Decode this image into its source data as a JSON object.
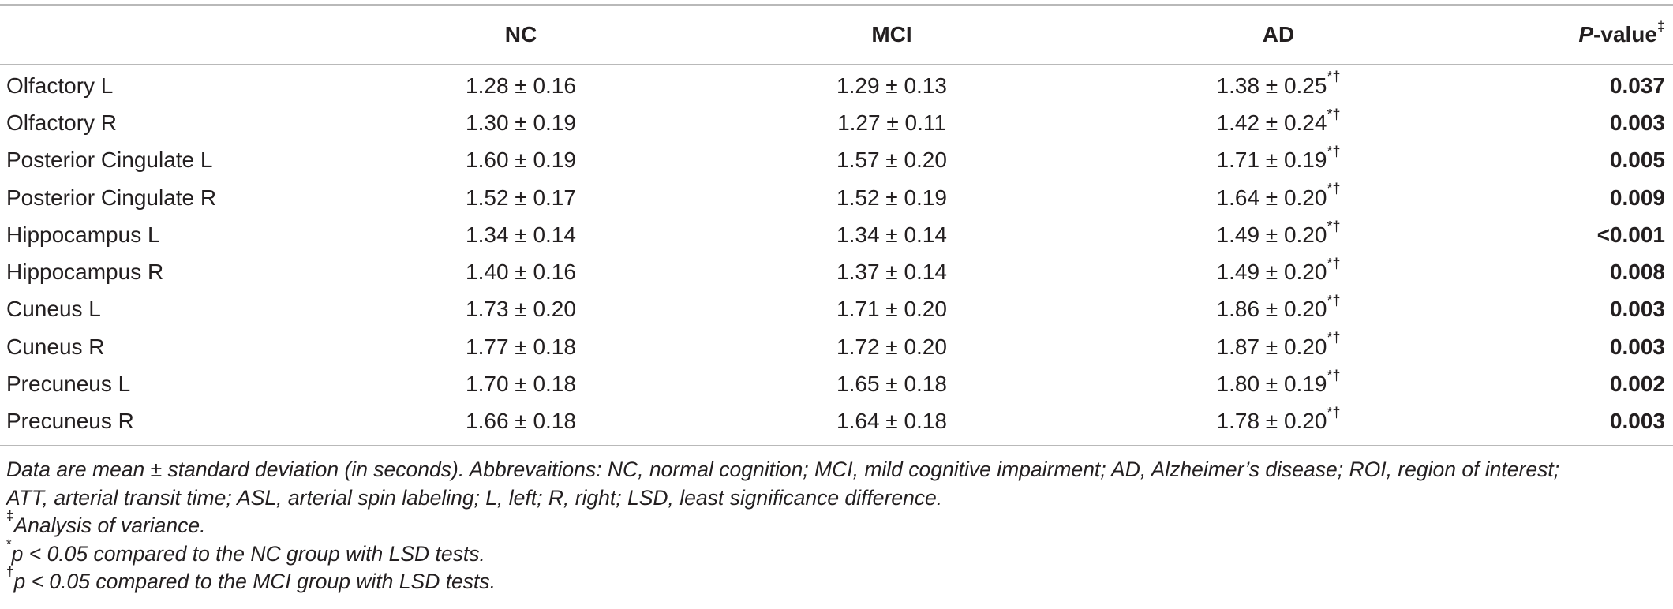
{
  "table": {
    "headers": {
      "nc": "NC",
      "mci": "MCI",
      "ad": "AD",
      "p_value_italic": "P",
      "p_value_rest": "-value",
      "p_value_mark": "‡"
    },
    "rows": [
      {
        "region": "Olfactory L",
        "nc": "1.28 ± 0.16",
        "mci": "1.29 ± 0.13",
        "ad": "1.38 ± 0.25",
        "ad_marks": "*†",
        "p": "0.037"
      },
      {
        "region": "Olfactory R",
        "nc": "1.30 ± 0.19",
        "mci": "1.27 ± 0.11",
        "ad": "1.42 ± 0.24",
        "ad_marks": "*†",
        "p": "0.003"
      },
      {
        "region": "Posterior Cingulate L",
        "nc": "1.60 ± 0.19",
        "mci": "1.57 ± 0.20",
        "ad": "1.71 ± 0.19",
        "ad_marks": "*†",
        "p": "0.005"
      },
      {
        "region": "Posterior Cingulate R",
        "nc": "1.52 ± 0.17",
        "mci": "1.52 ± 0.19",
        "ad": "1.64 ± 0.20",
        "ad_marks": "*†",
        "p": "0.009"
      },
      {
        "region": "Hippocampus L",
        "nc": "1.34 ± 0.14",
        "mci": "1.34 ± 0.14",
        "ad": "1.49 ± 0.20",
        "ad_marks": "*†",
        "p": "<0.001"
      },
      {
        "region": "Hippocampus R",
        "nc": "1.40 ± 0.16",
        "mci": "1.37 ± 0.14",
        "ad": "1.49 ± 0.20",
        "ad_marks": "*†",
        "p": "0.008"
      },
      {
        "region": "Cuneus L",
        "nc": "1.73 ± 0.20",
        "mci": "1.71 ± 0.20",
        "ad": "1.86 ± 0.20",
        "ad_marks": "*†",
        "p": "0.003"
      },
      {
        "region": "Cuneus R",
        "nc": "1.77 ± 0.18",
        "mci": "1.72 ± 0.20",
        "ad": "1.87 ± 0.20",
        "ad_marks": "*†",
        "p": "0.003"
      },
      {
        "region": "Precuneus L",
        "nc": "1.70 ± 0.18",
        "mci": "1.65 ± 0.18",
        "ad": "1.80 ± 0.19",
        "ad_marks": "*†",
        "p": "0.002"
      },
      {
        "region": "Precuneus R",
        "nc": "1.66 ± 0.18",
        "mci": "1.64 ± 0.18",
        "ad": "1.78 ± 0.20",
        "ad_marks": "*†",
        "p": "0.003"
      }
    ]
  },
  "notes": {
    "line1": "Data are mean ± standard deviation (in seconds). Abbrevaitions: NC, normal cognition; MCI, mild cognitive impairment; AD, Alzheimer’s disease; ROI, region of interest;",
    "line2": "ATT, arterial transit time; ASL, arterial spin labeling; L, left; R, right; LSD, least significance difference.",
    "anova_mark": "‡",
    "anova_text": "Analysis of variance.",
    "nc_mark": "*",
    "nc_text": "p < 0.05 compared to the NC group with LSD tests.",
    "mci_mark": "†",
    "mci_text": "p < 0.05 compared to the MCI group with LSD tests."
  }
}
